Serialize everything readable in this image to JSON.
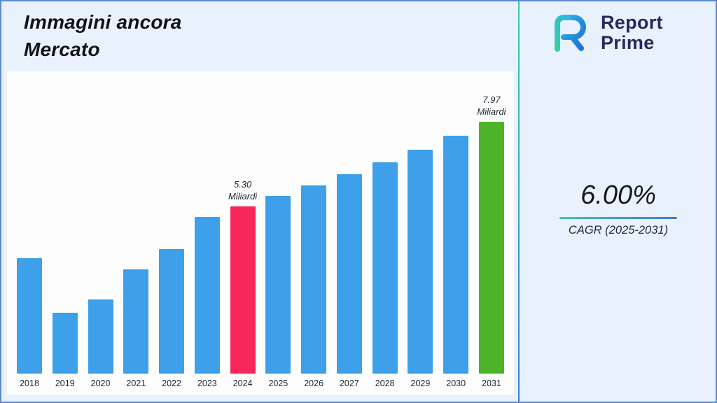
{
  "header": {
    "title": "Immagini ancora\nMercato"
  },
  "logo": {
    "line1": "Report",
    "line2": "Prime"
  },
  "cagr": {
    "value": "6.00%",
    "label": "CAGR (2025-2031)"
  },
  "chart_data": {
    "type": "bar",
    "title": "Immagini ancora Mercato",
    "unit": "Miliardi",
    "categories": [
      "2018",
      "2019",
      "2020",
      "2021",
      "2022",
      "2023",
      "2024",
      "2025",
      "2026",
      "2027",
      "2028",
      "2029",
      "2030",
      "2031"
    ],
    "values": [
      3.65,
      1.92,
      2.35,
      3.3,
      3.95,
      4.95,
      5.3,
      5.62,
      5.96,
      6.31,
      6.69,
      7.09,
      7.52,
      7.97
    ],
    "ylim": [
      0,
      9.3
    ],
    "xlabel": "",
    "ylabel": "",
    "grid": false,
    "legend": false,
    "annotations": [
      {
        "category": "2024",
        "text": "5.30\nMiliardi"
      },
      {
        "category": "2031",
        "text": "7.97\nMiliardi"
      }
    ],
    "colors": {
      "default": "#3da0e8",
      "2024": "#f7275c",
      "2031": "#4cb426"
    }
  },
  "colors": {
    "background": "#e9f2fc",
    "panel": "#fdfdfe",
    "frame_border": "#5a8ad0",
    "accent_teal": "#3fc9a4",
    "accent_blue": "#3b7fd4",
    "logo_navy": "#232a5c",
    "text_dark": "#15181c"
  }
}
